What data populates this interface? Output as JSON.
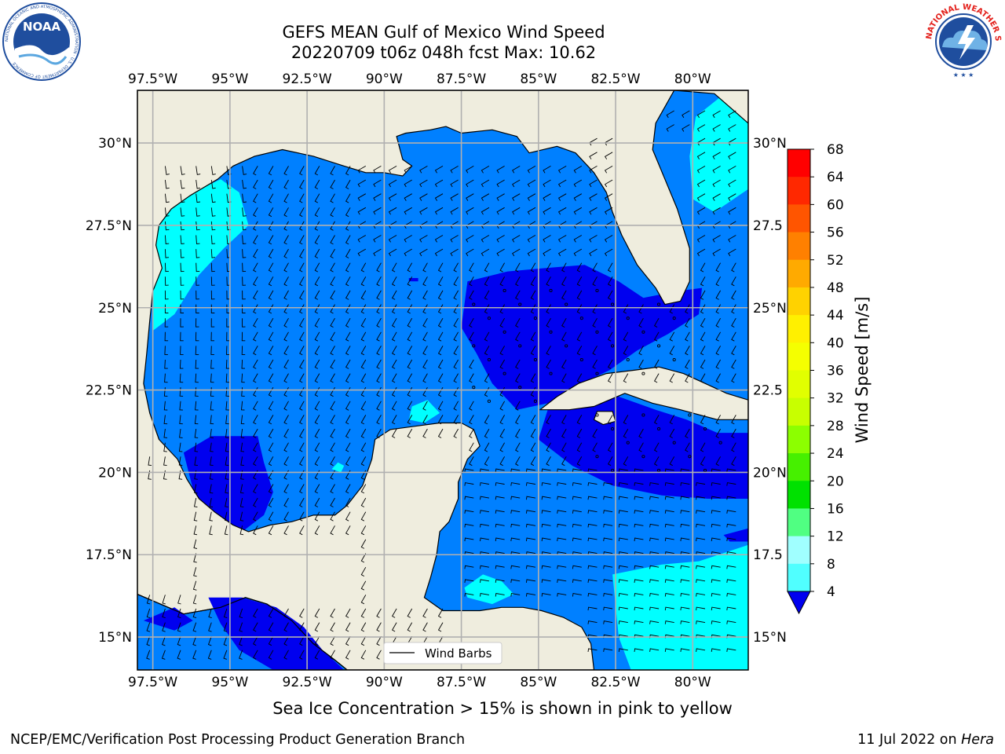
{
  "header": {
    "title_line1": "GEFS MEAN Gulf of Mexico Wind Speed",
    "title_line2": "20220709 t06z 048h fcst   Max: 10.62"
  },
  "logos": {
    "left": {
      "name": "noaa-logo",
      "text": "NOAA",
      "ring_text": "NATIONAL OCEANIC AND ATMOSPHERIC ADMINISTRATION · U.S. DEPARTMENT OF COMMERCE",
      "color": "#1f4e9e"
    },
    "right": {
      "name": "nws-logo",
      "ring_text": "NATIONAL WEATHER SERVICE",
      "color": "#e3201b"
    }
  },
  "map": {
    "lon_ticks": [
      "97.5°W",
      "95°W",
      "92.5°W",
      "90°W",
      "87.5°W",
      "85°W",
      "82.5°W",
      "80°W"
    ],
    "lon_values": [
      -97.5,
      -95,
      -92.5,
      -90,
      -87.5,
      -85,
      -82.5,
      -80
    ],
    "lat_ticks": [
      "30°N",
      "27.5°N",
      "25°N",
      "22.5°N",
      "20°N",
      "17.5°N",
      "15°N"
    ],
    "lat_values": [
      30,
      27.5,
      25,
      22.5,
      20,
      17.5,
      15
    ],
    "lat_ticks_right": [
      "30°N",
      "27.5",
      "25°N",
      "22.5",
      "20°N",
      "17.5",
      "15°N"
    ],
    "extent": {
      "lon_min": -98,
      "lon_max": -78.2,
      "lat_min": 14.0,
      "lat_max": 31.6
    },
    "grid": true,
    "legend_label": "Wind Barbs",
    "legend_position": "bottom-center",
    "colors": {
      "land": "#efedde",
      "ocean_4_8": "#0080ff",
      "ocean_lt4": "#0000ef",
      "ocean_8_12": "#00ffff"
    }
  },
  "colorbar": {
    "label": "Wind Speed [m/s]",
    "ticks": [
      "68",
      "64",
      "60",
      "56",
      "52",
      "48",
      "44",
      "40",
      "36",
      "32",
      "28",
      "24",
      "20",
      "16",
      "12",
      "8",
      "4"
    ],
    "colors": [
      "#ff0000",
      "#ff2800",
      "#ff5500",
      "#ff8000",
      "#ffaa00",
      "#ffd200",
      "#fff000",
      "#f5ff00",
      "#e1ff00",
      "#c8ff00",
      "#8cff00",
      "#46f000",
      "#00e100",
      "#50ff82",
      "#a0ffff",
      "#50ffff",
      "#00ffff",
      "#0080ff"
    ],
    "under_color": "#0000ef"
  },
  "footer": {
    "note": "Sea Ice Concentration > 15% is shown in pink to yellow",
    "credit": "NCEP/EMC/Verification Post Processing Product Generation Branch",
    "date_prefix": "11 Jul 2022 on ",
    "date_host": "Hera"
  }
}
